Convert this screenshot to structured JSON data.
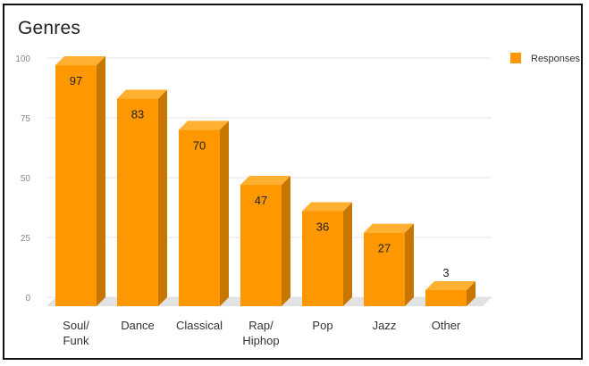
{
  "chart_data": {
    "type": "bar",
    "title": "Genres",
    "categories": [
      [
        "Soul/",
        "Funk"
      ],
      [
        "Dance"
      ],
      [
        "Classical"
      ],
      [
        "Rap/",
        "Hiphop"
      ],
      [
        "Pop"
      ],
      [
        "Jazz"
      ],
      [
        "Other"
      ]
    ],
    "series": [
      {
        "name": "Responses",
        "values": [
          97,
          83,
          70,
          47,
          36,
          27,
          3
        ]
      }
    ],
    "yticks": [
      "0",
      "25",
      "50",
      "75",
      "100"
    ],
    "ylim": [
      0,
      100
    ],
    "xlabel": "",
    "ylabel": "",
    "grid": true,
    "legend_position": "top-right",
    "style": "3d",
    "colors": {
      "front": "#FF9800",
      "side": "#C77700",
      "top": "#FFB030",
      "floor": "#E2E2E2",
      "grid": "#E6E6E6",
      "outside_label": "#F5A623"
    }
  }
}
